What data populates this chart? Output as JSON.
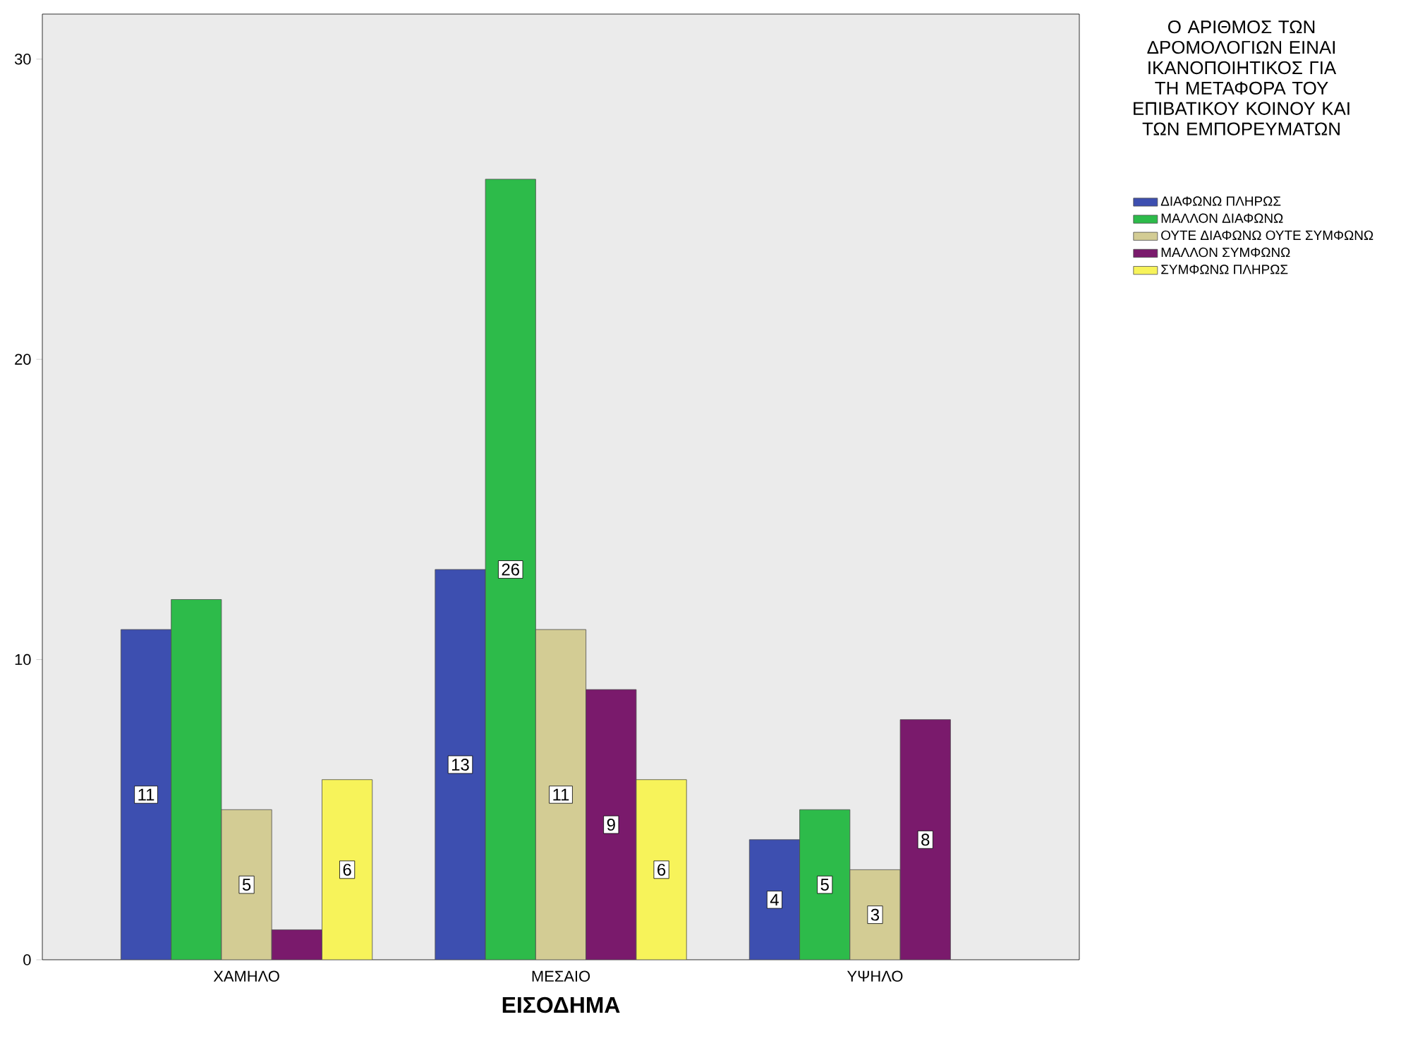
{
  "chart_data": {
    "type": "bar",
    "xlabel": "ΕΙΣΟΔΗΜΑ",
    "legend_title": "Ο ΑΡΙΘΜΟΣ ΤΩΝ ΔΡΟΜΟΛΟΓΙΩΝ ΕΙΝΑΙ ΙΚΑΝΟΠΟΙΗΤΙΚΟΣ ΓΙΑ ΤΗ ΜΕΤΑΦΟΡΑ ΤΟΥ ΕΠΙΒΑΤΙΚΟΥ ΚΟΙΝΟΥ ΚΑΙ ΤΩΝ ΕΜΠΟΡΕΥΜΑΤΩΝ",
    "categories": [
      "ΧΑΜΗΛΟ",
      "ΜΕΣΑΙΟ",
      "ΥΨΗΛΟ"
    ],
    "series": [
      {
        "name": "ΔΙΑΦΩΝΩ ΠΛΗΡΩΣ",
        "color": "#3d4fb0",
        "values": [
          11,
          13,
          4
        ],
        "value_labels": [
          "11",
          "13",
          "4"
        ]
      },
      {
        "name": "ΜΑΛΛΟΝ ΔΙΑΦΩΝΩ",
        "color": "#2dbb4a",
        "values": [
          12,
          26,
          5
        ],
        "value_labels": [
          null,
          "26",
          "5"
        ]
      },
      {
        "name": "ΟΥΤΕ ΔΙΑΦΩΝΩ ΟΥΤΕ ΣΥΜΦΩΝΩ",
        "color": "#d3cc94",
        "values": [
          5,
          11,
          3
        ],
        "value_labels": [
          "5",
          "11",
          "3"
        ]
      },
      {
        "name": "ΜΑΛΛΟΝ ΣΥΜΦΩΝΩ",
        "color": "#7a1a6c",
        "values": [
          1,
          9,
          8
        ],
        "value_labels": [
          null,
          "9",
          "8"
        ]
      },
      {
        "name": "ΣΥΜΦΩΝΩ ΠΛΗΡΩΣ",
        "color": "#f7f35a",
        "values": [
          6,
          6,
          null
        ],
        "value_labels": [
          "6",
          "6",
          null
        ]
      }
    ],
    "ylim": [
      0,
      31.5
    ],
    "yticks": [
      0,
      10,
      20,
      30
    ],
    "grid": false,
    "legend": "right"
  }
}
